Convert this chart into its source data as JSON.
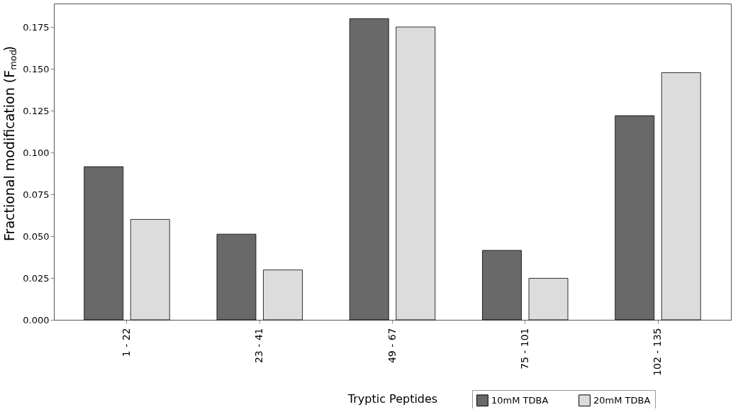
{
  "chart_data": {
    "type": "bar",
    "xlabel": "Tryptic Peptides",
    "ylabel": "Fractional modification (F$_{mod}$)",
    "categories": [
      "1 - 22",
      "23 - 41",
      "49 - 67",
      "75 - 101",
      "102 - 135"
    ],
    "series": [
      {
        "name": "10mM TDBA",
        "color": "#696969",
        "values": [
          0.0915,
          0.0512,
          0.18,
          0.0415,
          0.122
        ]
      },
      {
        "name": "20mM TDBA",
        "color": "#dcdcdc",
        "values": [
          0.06,
          0.0298,
          0.175,
          0.0248,
          0.1477
        ]
      }
    ],
    "ylim": [
      0,
      0.189
    ],
    "yticks": [
      {
        "value": 0,
        "label": "0.000"
      },
      {
        "value": 0.025,
        "label": "0.025"
      },
      {
        "value": 0.05,
        "label": "0.050"
      },
      {
        "value": 0.075,
        "label": "0.075"
      },
      {
        "value": 0.1,
        "label": "0.100"
      },
      {
        "value": 0.125,
        "label": "0.125"
      },
      {
        "value": 0.15,
        "label": "0.150"
      },
      {
        "value": 0.175,
        "label": "0.175"
      }
    ],
    "grid": false,
    "legend": "bottom right"
  }
}
